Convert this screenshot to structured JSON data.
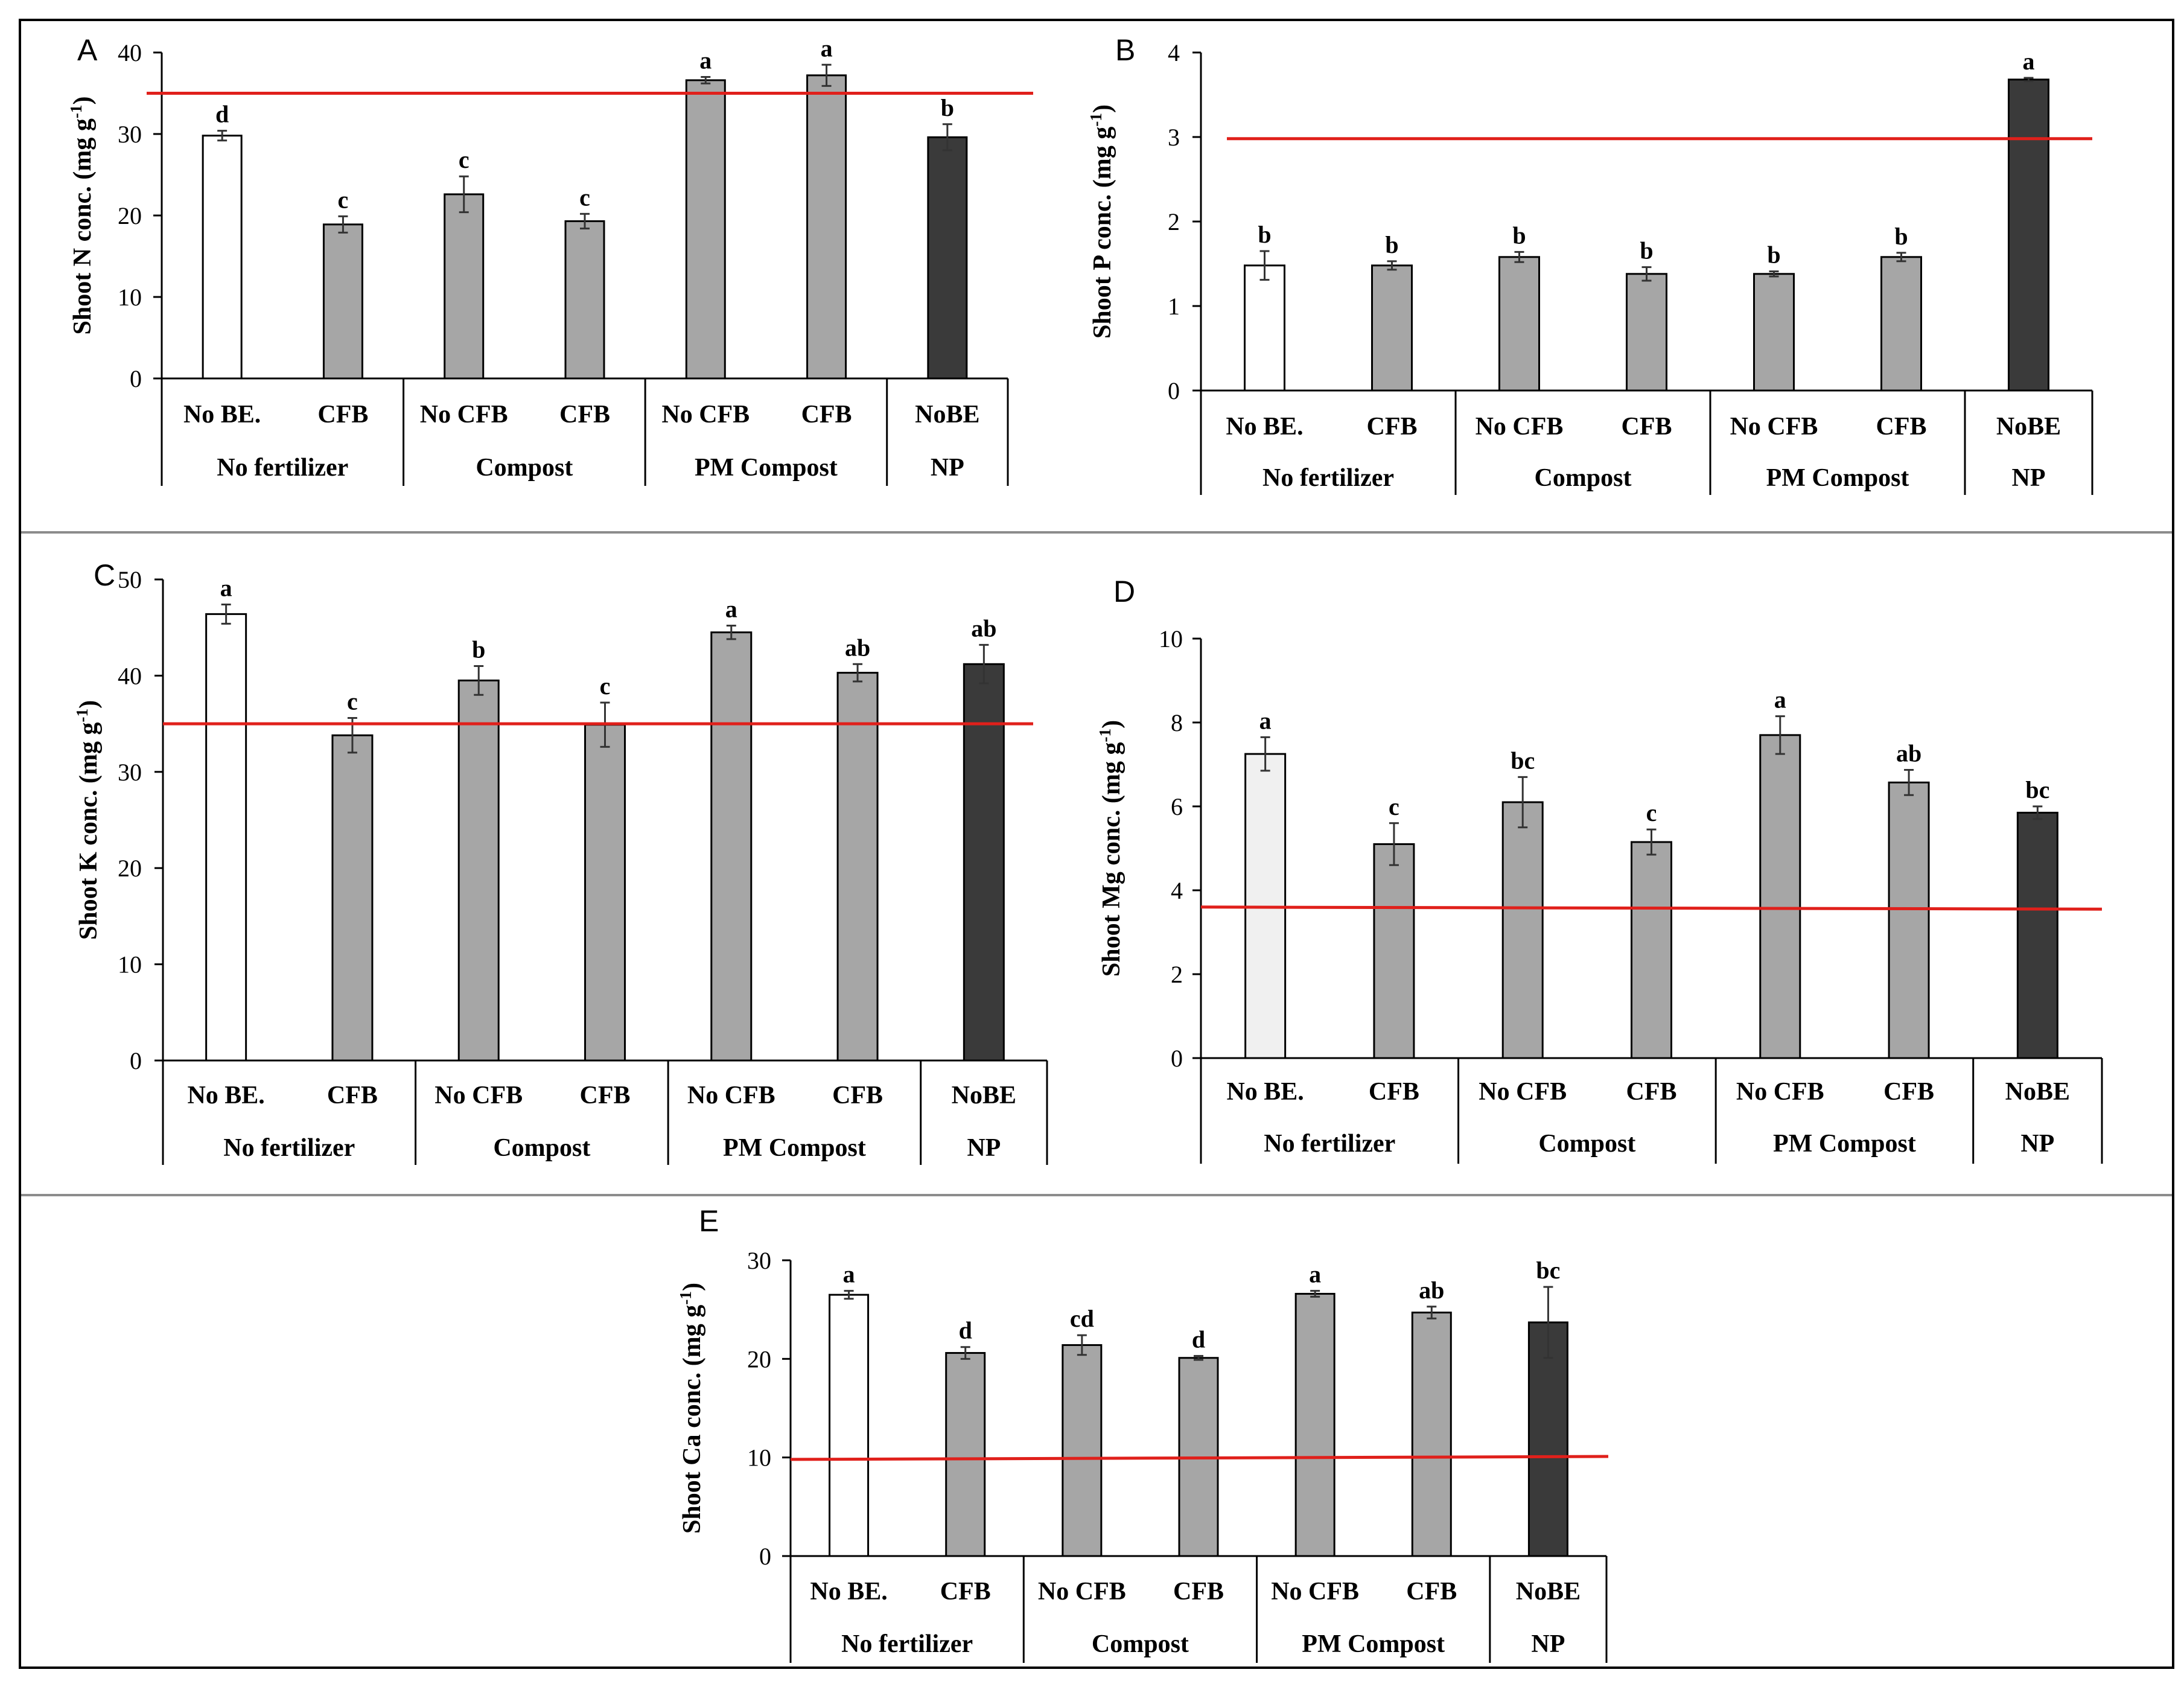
{
  "colors": {
    "white_bar": "#ffffff",
    "light_bar": "#f0f0f0",
    "grey_bar": "#a6a6a6",
    "dark_bar": "#3a3a3a",
    "reference_line": "#e0201b",
    "divider": "#8c8c8c",
    "axis": "#000000"
  },
  "chart_data": [
    {
      "panel": "A",
      "type": "bar",
      "ylabel": "Shoot N conc. (mg g-1)",
      "ylabel_main": "Shoot N conc. (mg g",
      "ylabel_sup": "-1",
      "ylabel_end": ")",
      "ylim": [
        0,
        40
      ],
      "yticks": [
        "0",
        "10",
        "20",
        "30",
        "40"
      ],
      "categories": [
        "No BE.",
        "CFB",
        "No CFB",
        "CFB",
        "No CFB",
        "CFB",
        "NoBE"
      ],
      "values": [
        29.8,
        18.9,
        22.6,
        19.3,
        36.6,
        37.2,
        29.6
      ],
      "errors": [
        0.6,
        1.0,
        2.2,
        0.9,
        0.4,
        1.3,
        1.6
      ],
      "letters": [
        "d",
        "c",
        "c",
        "c",
        "a",
        "a",
        "b"
      ],
      "fills": [
        "white",
        "grey",
        "grey",
        "grey",
        "grey",
        "grey",
        "dark"
      ],
      "groups": [
        {
          "label": "No fertilizer",
          "size": 2
        },
        {
          "label": "Compost",
          "size": 2
        },
        {
          "label": "PM Compost",
          "size": 2
        },
        {
          "label": "NP",
          "size": 1
        }
      ],
      "reference_line": [
        35.0,
        35.0
      ]
    },
    {
      "panel": "B",
      "type": "bar",
      "ylabel": "Shoot P conc. (mg g-1)",
      "ylabel_main": "Shoot P conc. (mg g",
      "ylabel_sup": "-1",
      "ylabel_end": ")",
      "ylim": [
        0,
        4
      ],
      "yticks": [
        "0",
        "1",
        "2",
        "3",
        "4"
      ],
      "categories": [
        "No BE.",
        "CFB",
        "No CFB",
        "CFB",
        "No CFB",
        "CFB",
        "NoBE"
      ],
      "values": [
        1.48,
        1.48,
        1.58,
        1.38,
        1.38,
        1.58,
        3.68
      ],
      "errors": [
        0.17,
        0.05,
        0.06,
        0.08,
        0.03,
        0.05,
        0.02
      ],
      "letters": [
        "b",
        "b",
        "b",
        "b",
        "b",
        "b",
        "a"
      ],
      "fills": [
        "white",
        "grey",
        "grey",
        "grey",
        "grey",
        "grey",
        "dark"
      ],
      "groups": [
        {
          "label": "No fertilizer",
          "size": 2
        },
        {
          "label": "Compost",
          "size": 2
        },
        {
          "label": "PM Compost",
          "size": 2
        },
        {
          "label": "NP",
          "size": 1
        }
      ],
      "reference_line": [
        2.98,
        2.98
      ]
    },
    {
      "panel": "C",
      "type": "bar",
      "ylabel": "Shoot K conc. (mg g-1)",
      "ylabel_main": "Shoot K conc. (mg g",
      "ylabel_sup": "-1",
      "ylabel_end": ")",
      "ylim": [
        0,
        50
      ],
      "yticks": [
        "0",
        "10",
        "20",
        "30",
        "40",
        "50"
      ],
      "categories": [
        "No BE.",
        "CFB",
        "No CFB",
        "CFB",
        "No CFB",
        "CFB",
        "NoBE"
      ],
      "values": [
        46.4,
        33.8,
        39.5,
        34.9,
        44.5,
        40.3,
        41.2
      ],
      "errors": [
        1.0,
        1.8,
        1.5,
        2.3,
        0.7,
        0.9,
        2.0
      ],
      "letters": [
        "a",
        "c",
        "b",
        "c",
        "a",
        "ab",
        "ab"
      ],
      "fills": [
        "white",
        "grey",
        "grey",
        "grey",
        "grey",
        "grey",
        "dark"
      ],
      "groups": [
        {
          "label": "No fertilizer",
          "size": 2
        },
        {
          "label": "Compost",
          "size": 2
        },
        {
          "label": "PM Compost",
          "size": 2
        },
        {
          "label": "NP",
          "size": 1
        }
      ],
      "reference_line": [
        35.0,
        35.0
      ]
    },
    {
      "panel": "D",
      "type": "bar",
      "ylabel": "Shoot Mg conc. (mg g-1)",
      "ylabel_main": "Shoot Mg conc. (mg g",
      "ylabel_sup": "-1",
      "ylabel_end": ")",
      "ylim": [
        0,
        10
      ],
      "yticks": [
        "0",
        "2",
        "4",
        "6",
        "8",
        "10"
      ],
      "categories": [
        "No BE.",
        "CFB",
        "No CFB",
        "CFB",
        "No CFB",
        "CFB",
        "NoBE"
      ],
      "values": [
        7.25,
        5.1,
        6.1,
        5.15,
        7.7,
        6.57,
        5.85
      ],
      "errors": [
        0.4,
        0.5,
        0.6,
        0.3,
        0.45,
        0.3,
        0.15
      ],
      "letters": [
        "a",
        "c",
        "bc",
        "c",
        "a",
        "ab",
        "bc"
      ],
      "fills": [
        "light",
        "grey",
        "grey",
        "grey",
        "grey",
        "grey",
        "dark"
      ],
      "groups": [
        {
          "label": "No fertilizer",
          "size": 2
        },
        {
          "label": "Compost",
          "size": 2
        },
        {
          "label": "PM Compost",
          "size": 2
        },
        {
          "label": "NP",
          "size": 1
        }
      ],
      "reference_line": [
        3.6,
        3.55
      ]
    },
    {
      "panel": "E",
      "type": "bar",
      "ylabel": "Shoot Ca conc. (mg g-1)",
      "ylabel_main": "Shoot Ca conc. (mg g",
      "ylabel_sup": "-1",
      "ylabel_end": ")",
      "ylim": [
        0,
        30
      ],
      "yticks": [
        "0",
        "10",
        "20",
        "30"
      ],
      "categories": [
        "No BE.",
        "CFB",
        "No CFB",
        "CFB",
        "No CFB",
        "CFB",
        "NoBE"
      ],
      "values": [
        26.5,
        20.6,
        21.4,
        20.1,
        26.6,
        24.7,
        23.7
      ],
      "errors": [
        0.4,
        0.6,
        1.0,
        0.2,
        0.3,
        0.6,
        3.6
      ],
      "letters": [
        "a",
        "d",
        "cd",
        "d",
        "a",
        "ab",
        "bc"
      ],
      "fills": [
        "white",
        "grey",
        "grey",
        "grey",
        "grey",
        "grey",
        "dark"
      ],
      "groups": [
        {
          "label": "No fertilizer",
          "size": 2
        },
        {
          "label": "Compost",
          "size": 2
        },
        {
          "label": "PM Compost",
          "size": 2
        },
        {
          "label": "NP",
          "size": 1
        }
      ],
      "reference_line": [
        9.8,
        10.1
      ]
    }
  ]
}
